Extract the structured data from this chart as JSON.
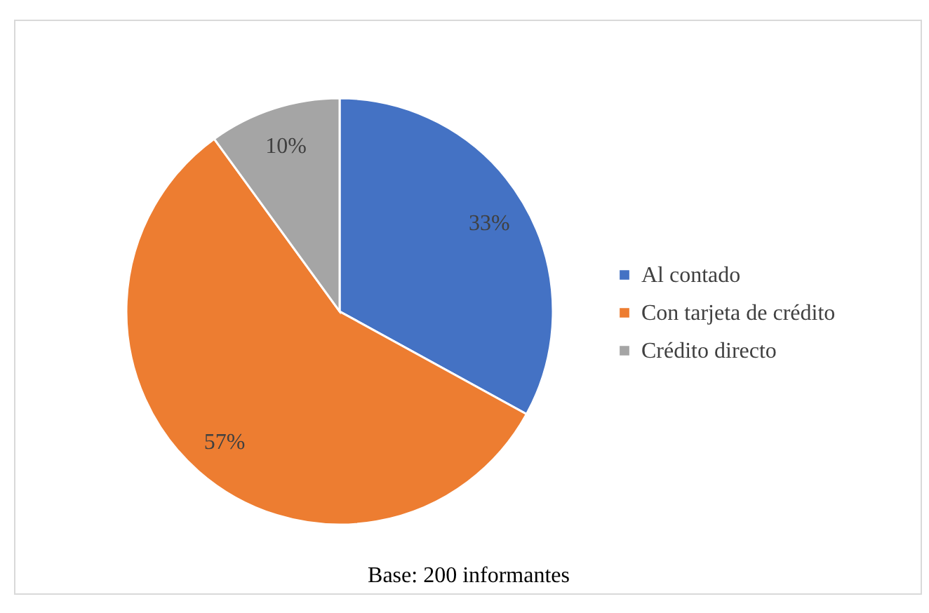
{
  "chart_data": {
    "type": "pie",
    "categories": [
      "Al contado",
      "Con tarjeta de crédito",
      "Crédito directo"
    ],
    "values": [
      33,
      57,
      10
    ],
    "colors": [
      "#4472c4",
      "#ed7d31",
      "#a5a5a5"
    ],
    "value_labels": [
      "33%",
      "57%",
      "10%"
    ],
    "legend": "right",
    "annotations": [
      "Base: 200 informantes"
    ]
  }
}
